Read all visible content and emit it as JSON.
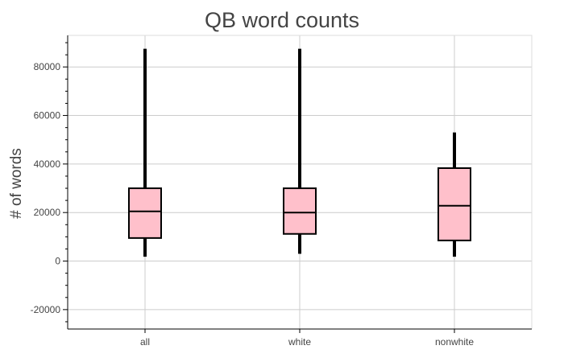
{
  "chart_data": {
    "type": "box",
    "title": "QB word counts",
    "xlabel": "",
    "ylabel": "# of words",
    "categories": [
      "all",
      "white",
      "nonwhite"
    ],
    "boxes": [
      {
        "category": "all",
        "lower_whisker": 1800,
        "q1": 9500,
        "median": 20500,
        "q3": 30000,
        "upper_whisker": 87500
      },
      {
        "category": "white",
        "lower_whisker": 3000,
        "q1": 11200,
        "median": 20000,
        "q3": 30000,
        "upper_whisker": 87500
      },
      {
        "category": "nonwhite",
        "lower_whisker": 1800,
        "q1": 8500,
        "median": 22800,
        "q3": 38300,
        "upper_whisker": 53000
      }
    ],
    "ylim": [
      -28000,
      93000
    ],
    "yticks": [
      -20000,
      0,
      20000,
      40000,
      60000,
      80000
    ],
    "yticks_labels": [
      "-20000",
      "0",
      "20000",
      "40000",
      "60000",
      "80000"
    ],
    "grid": true,
    "legend": "none",
    "colors": {
      "box_fill": "#ffc0cb",
      "box_stroke": "#000000",
      "whisker": "#000000",
      "grid": "#cccccc",
      "text": "#444444"
    }
  }
}
